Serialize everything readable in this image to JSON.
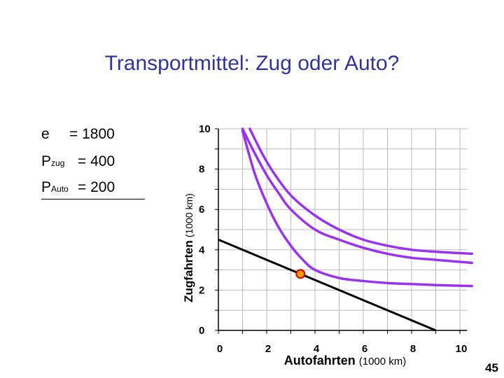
{
  "slide": {
    "title": "Transportmittel: Zug oder Auto?",
    "page_number": "45"
  },
  "params": [
    {
      "symbol": "e",
      "sub": "",
      "value": "= 1800"
    },
    {
      "symbol": "P",
      "sub": "zug",
      "value": "= 400"
    },
    {
      "symbol": "P",
      "sub": "Auto",
      "value": "= 200"
    }
  ],
  "colors": {
    "curve": "#9933ee",
    "budget": "#000000",
    "point_fill": "#ff9900",
    "point_stroke": "#cc0000",
    "title": "#33339a"
  },
  "chart_data": {
    "type": "line",
    "xlabel": "Autofahrten",
    "xlabel_unit": "(1000 km)",
    "ylabel": "Zugfahrten",
    "ylabel_unit": "(1000 km)",
    "xlim": [
      0,
      10
    ],
    "ylim": [
      0,
      10
    ],
    "x_ticks": [
      "0",
      "2",
      "4",
      "6",
      "8",
      "10"
    ],
    "y_ticks": [
      "0",
      "2",
      "4",
      "6",
      "8",
      "10"
    ],
    "grid": true,
    "series": [
      {
        "role": "indifference-curve",
        "x": [
          1.0,
          1.5,
          2.0,
          2.5,
          3.0,
          3.5,
          4.0,
          5.0,
          6.0,
          7.0,
          8.0,
          9.0,
          10.5
        ],
        "y": [
          9.9,
          7.8,
          6.3,
          5.1,
          4.2,
          3.5,
          3.0,
          2.6,
          2.45,
          2.35,
          2.3,
          2.25,
          2.2
        ]
      },
      {
        "role": "indifference-curve",
        "x": [
          1.0,
          1.5,
          2.0,
          2.5,
          3.0,
          4.0,
          5.0,
          6.0,
          7.0,
          8.0,
          9.0,
          10.5
        ],
        "y": [
          10.0,
          8.8,
          7.7,
          6.8,
          6.0,
          5.0,
          4.5,
          4.1,
          3.8,
          3.6,
          3.5,
          3.35
        ]
      },
      {
        "role": "indifference-curve",
        "x": [
          1.3,
          1.8,
          2.3,
          3.0,
          4.0,
          5.0,
          6.0,
          7.0,
          8.0,
          9.0,
          10.5
        ],
        "y": [
          10.0,
          8.8,
          7.8,
          6.7,
          5.7,
          5.0,
          4.5,
          4.2,
          4.0,
          3.9,
          3.8
        ]
      },
      {
        "role": "budget-line",
        "x": [
          0,
          9
        ],
        "y": [
          4.5,
          0
        ]
      }
    ],
    "optimum": {
      "x": 3.4,
      "y": 2.8
    }
  }
}
